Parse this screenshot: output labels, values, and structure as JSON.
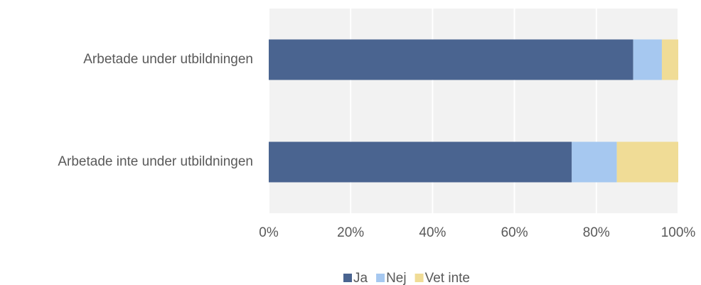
{
  "chart_data": {
    "type": "bar",
    "orientation": "horizontal",
    "stacked": true,
    "categories": [
      "Arbetade under utbildningen",
      "Arbetade inte under utbildningen"
    ],
    "series": [
      {
        "name": "Ja",
        "color": "#4a6490",
        "values": [
          89,
          74
        ]
      },
      {
        "name": "Nej",
        "color": "#a6c8f0",
        "values": [
          7,
          11
        ]
      },
      {
        "name": "Vet inte",
        "color": "#f0dc96",
        "values": [
          4,
          15
        ]
      }
    ],
    "xlim": [
      0,
      100
    ],
    "xticks": [
      {
        "value": 0,
        "label": "0%"
      },
      {
        "value": 20,
        "label": "20%"
      },
      {
        "value": 40,
        "label": "40%"
      },
      {
        "value": 60,
        "label": "60%"
      },
      {
        "value": 80,
        "label": "80%"
      },
      {
        "value": 100,
        "label": "100%"
      }
    ],
    "grid": true,
    "legend": "bottom"
  }
}
